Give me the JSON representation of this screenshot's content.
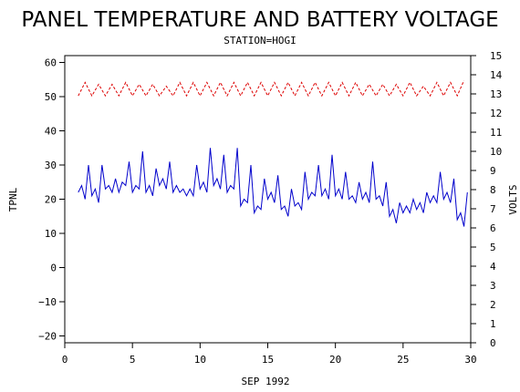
{
  "chart_data": {
    "type": "line",
    "title": "PANEL TEMPERATURE AND BATTERY VOLTAGE",
    "subtitle": "STATION=HOGI",
    "xlabel": "SEP 1992",
    "ylabel_left": "TPNL",
    "ylabel_right": "VOLTS",
    "xlim": [
      0,
      30
    ],
    "ylim_left": [
      -22,
      62
    ],
    "ylim_right": [
      0,
      15
    ],
    "xticks": [
      0,
      5,
      10,
      15,
      20,
      25,
      30
    ],
    "yticks_left": [
      -20,
      -10,
      0,
      10,
      20,
      30,
      40,
      50,
      60
    ],
    "yticks_right": [
      0,
      1,
      2,
      3,
      4,
      5,
      6,
      7,
      8,
      9,
      10,
      11,
      12,
      13,
      14,
      15
    ],
    "series": [
      {
        "axis": "left",
        "color": "#0000cc",
        "style": "solid",
        "daily": [
          [
            22,
            24,
            20,
            30
          ],
          [
            21,
            23,
            19,
            30
          ],
          [
            23,
            24,
            22,
            26
          ],
          [
            22,
            25,
            24,
            31
          ],
          [
            22,
            24,
            23,
            34
          ],
          [
            22,
            24,
            21,
            29
          ],
          [
            24,
            26,
            23,
            31
          ],
          [
            22,
            24,
            22,
            23
          ],
          [
            21,
            23,
            21,
            30
          ],
          [
            23,
            25,
            22,
            35
          ],
          [
            24,
            26,
            23,
            33
          ],
          [
            22,
            24,
            23,
            35
          ],
          [
            18,
            20,
            19,
            30
          ],
          [
            16,
            18,
            17,
            26
          ],
          [
            20,
            22,
            19,
            27
          ],
          [
            17,
            18,
            15,
            23
          ],
          [
            18,
            19,
            17,
            28
          ],
          [
            20,
            22,
            21,
            30
          ],
          [
            21,
            23,
            20,
            33
          ],
          [
            21,
            23,
            20,
            28
          ],
          [
            20,
            21,
            19,
            25
          ],
          [
            20,
            22,
            19,
            31
          ],
          [
            20,
            21,
            18,
            25
          ],
          [
            15,
            17,
            13,
            19
          ],
          [
            16,
            18,
            16,
            20
          ],
          [
            17,
            19,
            16,
            22
          ],
          [
            19,
            21,
            19,
            28
          ],
          [
            20,
            22,
            19,
            26
          ],
          [
            14,
            16,
            12,
            22
          ]
        ]
      },
      {
        "axis": "right",
        "color": "#dd0000",
        "style": "dashed",
        "daily": [
          [
            12.9,
            13.6
          ],
          [
            12.9,
            13.5
          ],
          [
            12.9,
            13.5
          ],
          [
            12.9,
            13.6
          ],
          [
            12.9,
            13.5
          ],
          [
            12.9,
            13.5
          ],
          [
            12.9,
            13.4
          ],
          [
            12.9,
            13.6
          ],
          [
            12.9,
            13.6
          ],
          [
            12.9,
            13.6
          ],
          [
            12.9,
            13.6
          ],
          [
            12.9,
            13.6
          ],
          [
            12.9,
            13.6
          ],
          [
            12.9,
            13.6
          ],
          [
            12.9,
            13.6
          ],
          [
            12.9,
            13.6
          ],
          [
            12.9,
            13.6
          ],
          [
            12.9,
            13.6
          ],
          [
            12.9,
            13.6
          ],
          [
            12.9,
            13.6
          ],
          [
            12.9,
            13.6
          ],
          [
            12.9,
            13.5
          ],
          [
            12.9,
            13.5
          ],
          [
            12.9,
            13.5
          ],
          [
            12.9,
            13.6
          ],
          [
            12.9,
            13.4
          ],
          [
            12.9,
            13.6
          ],
          [
            12.9,
            13.6
          ],
          [
            12.9,
            13.7
          ]
        ]
      }
    ]
  }
}
